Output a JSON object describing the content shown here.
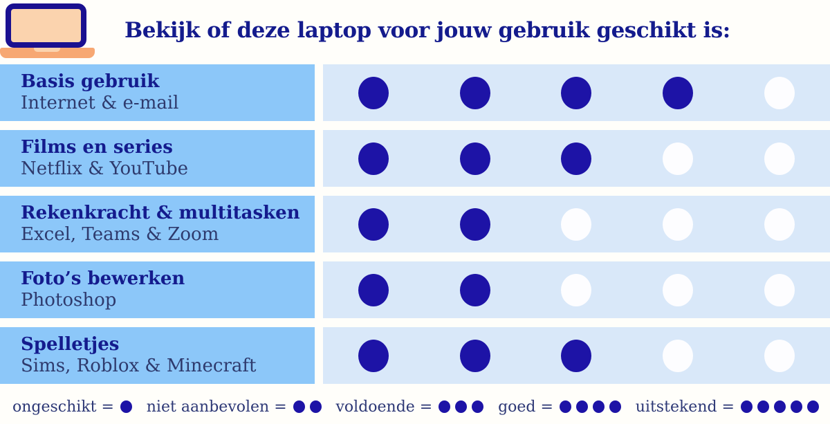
{
  "header": {
    "title": "Bekijk of deze laptop voor jouw gebruik geschikt is:",
    "icon": "laptop-icon"
  },
  "colors": {
    "brand_navy": "#141b8d",
    "dot_filled": "#1d13a6",
    "dot_empty": "#fdfdff",
    "label_panel_bg": "#8cc7f9",
    "dots_panel_bg": "#d9e8f9",
    "subtitle_text": "#2e3a6d",
    "laptop_screen_fill": "#fbd3ae",
    "laptop_base_orange": "#f7a873",
    "background": "#fffefa"
  },
  "chart_data": {
    "type": "table",
    "title": "Bekijk of deze laptop voor jouw gebruik geschikt is:",
    "max_score": 5,
    "rows": [
      {
        "title": "Basis gebruik",
        "subtitle": "Internet & e-mail",
        "score": 4
      },
      {
        "title": "Films en series",
        "subtitle": "Netflix & YouTube",
        "score": 3
      },
      {
        "title": "Rekenkracht & multitasken",
        "subtitle": "Excel, Teams & Zoom",
        "score": 2
      },
      {
        "title": "Foto’s bewerken",
        "subtitle": "Photoshop",
        "score": 2
      },
      {
        "title": "Spelletjes",
        "subtitle": "Sims, Roblox & Minecraft",
        "score": 3
      }
    ],
    "legend": [
      {
        "label": "ongeschikt =",
        "dots": 1
      },
      {
        "label": "niet aanbevolen =",
        "dots": 2
      },
      {
        "label": "voldoende =",
        "dots": 3
      },
      {
        "label": "goed =",
        "dots": 4
      },
      {
        "label": "uitstekend =",
        "dots": 5
      }
    ],
    "score_scale_labels": [
      "ongeschikt",
      "niet aanbevolen",
      "voldoende",
      "goed",
      "uitstekend"
    ]
  }
}
